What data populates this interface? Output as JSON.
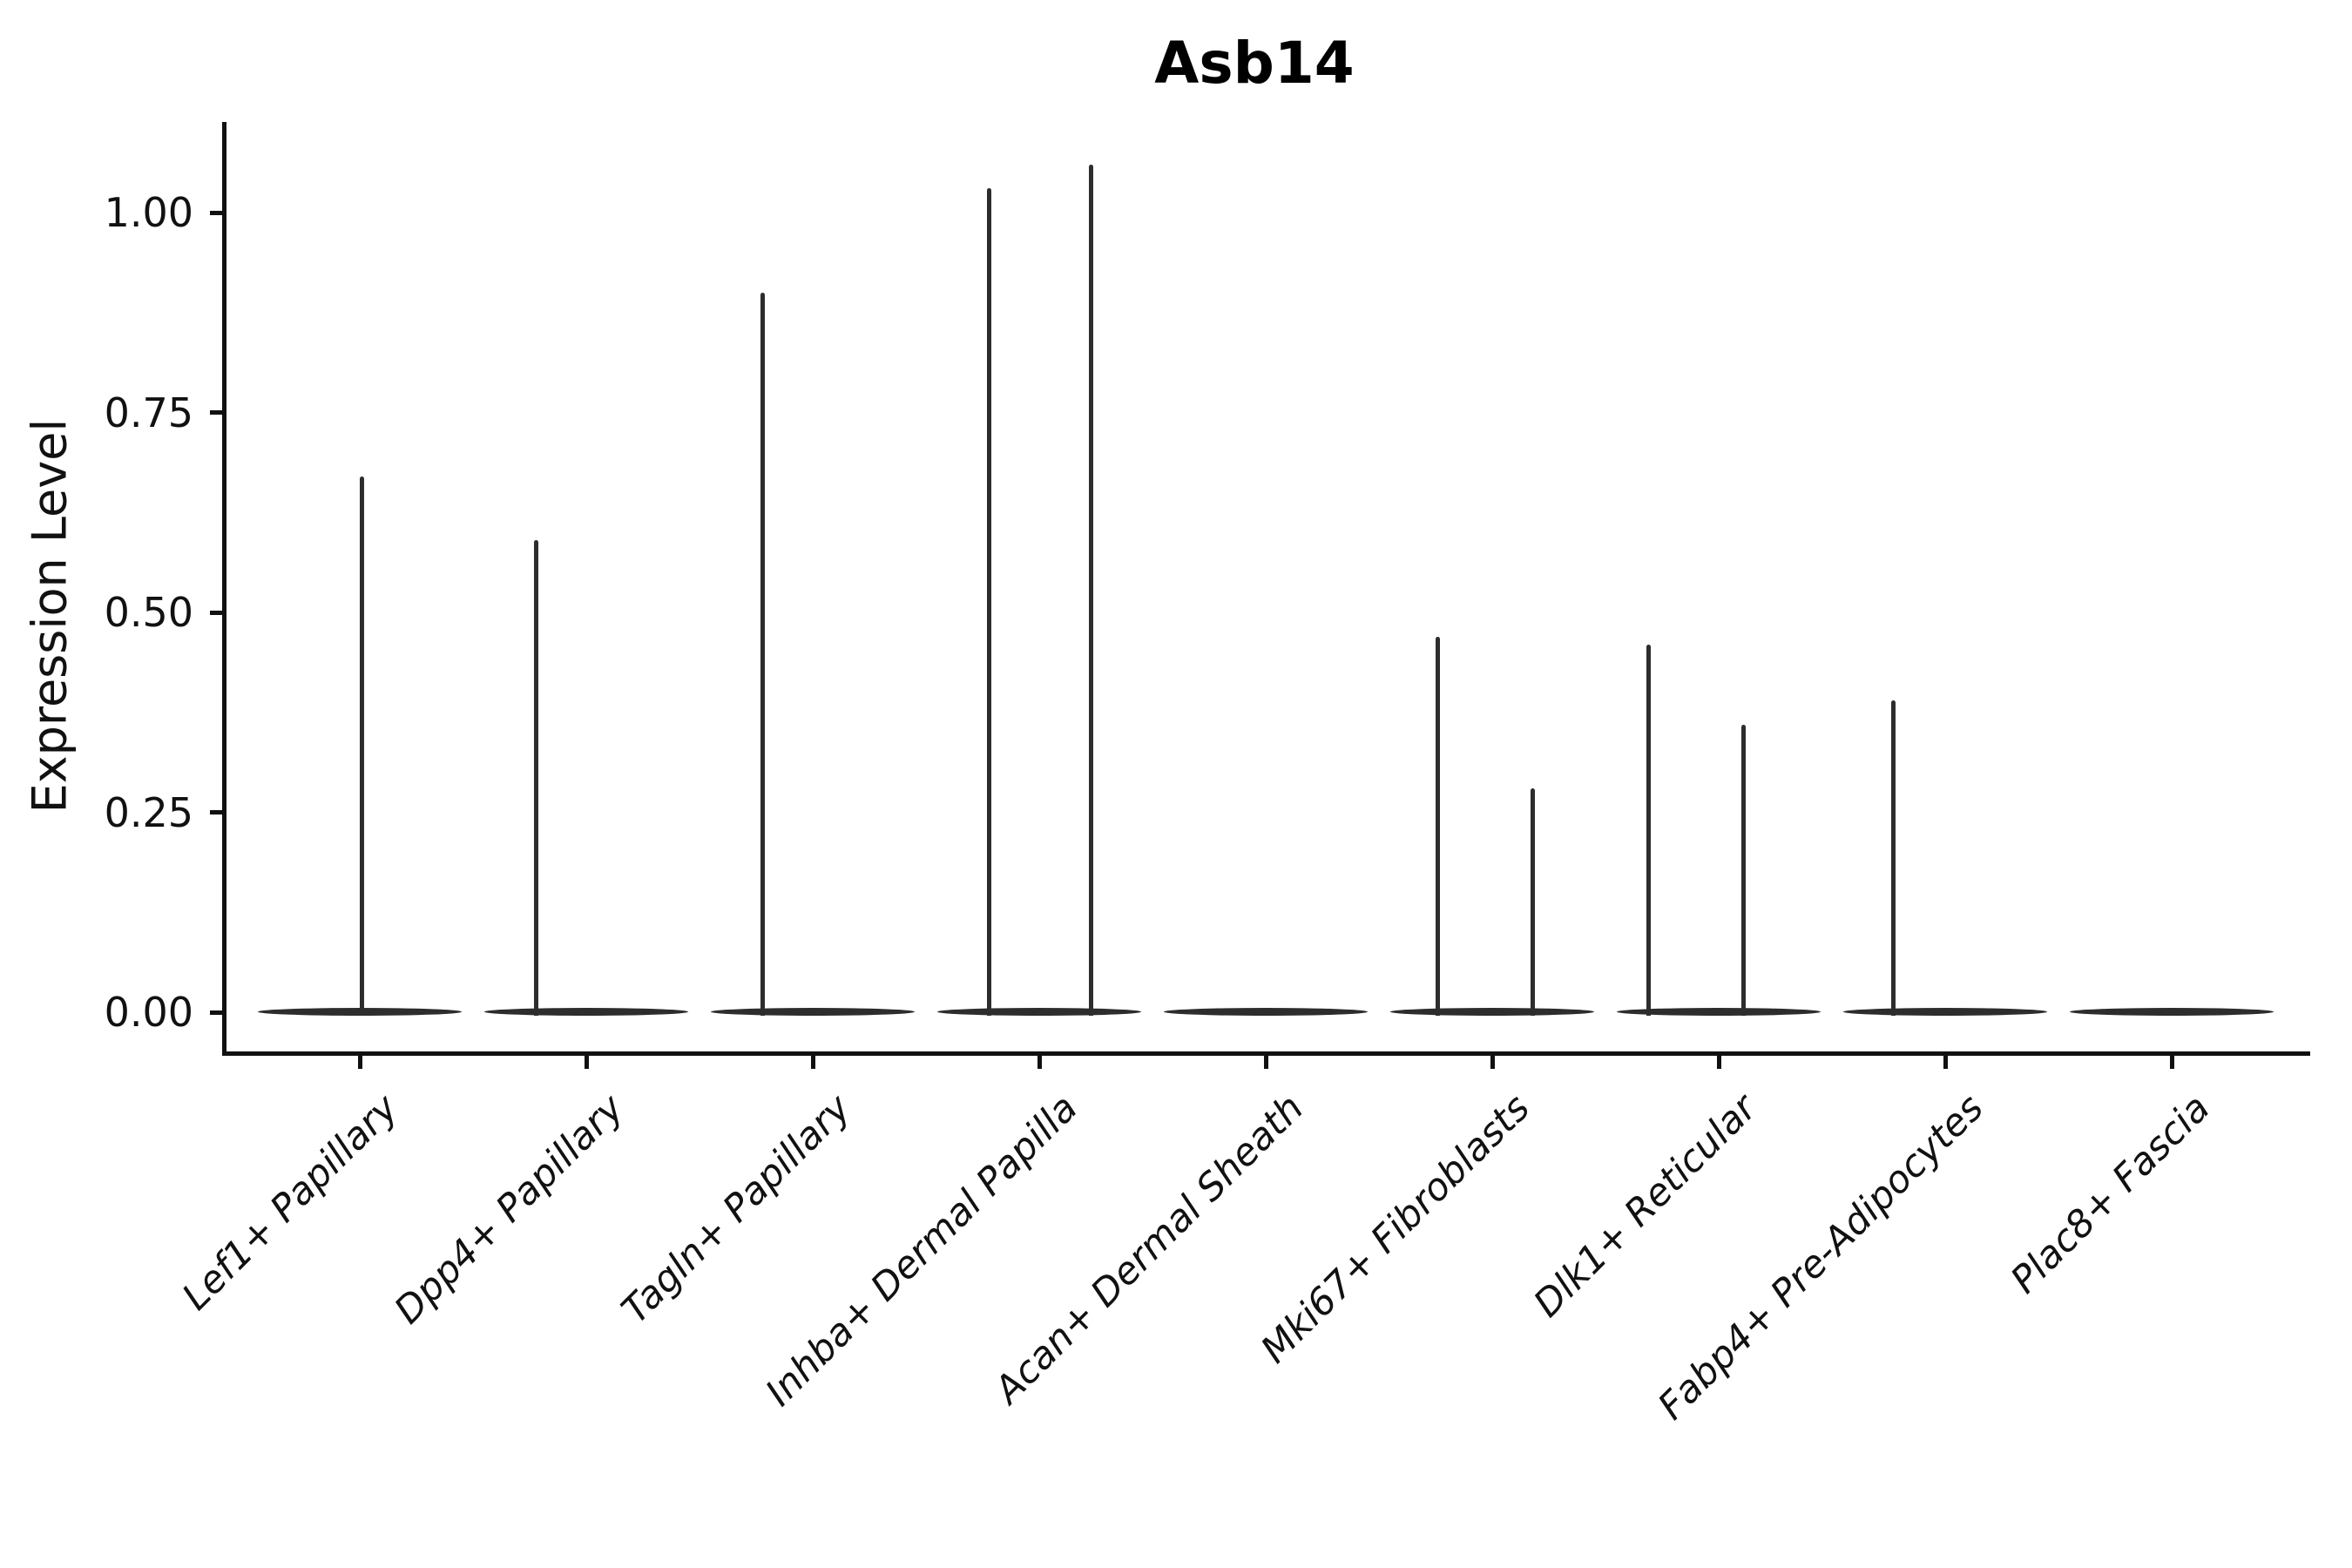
{
  "chart_data": {
    "type": "violin",
    "title": "Asb14",
    "xlabel": "",
    "ylabel": "Expression Level",
    "ylim": [
      -0.05,
      1.11
    ],
    "yticks": [
      0.0,
      0.25,
      0.5,
      0.75,
      1.0
    ],
    "ytick_labels": [
      "0.00",
      "0.25",
      "0.50",
      "0.75",
      "1.00"
    ],
    "grid": false,
    "legend": "none",
    "categories": [
      "Lef1+ Papillary",
      "Dpp4+ Papillary",
      "Tagln+ Papillary",
      "Inhba+ Dermal Papilla",
      "Acan+ Dermal Sheath",
      "Mki67+ Fibroblasts",
      "Dlk1+ Reticular",
      "Fabp4+ Pre-Adipocytes",
      "Plac8+ Fascia"
    ],
    "violins": [
      {
        "category": "Lef1+ Papillary",
        "body_value": 0,
        "spikes": [
          {
            "value": 0.67,
            "offset": 0.01
          }
        ]
      },
      {
        "category": "Dpp4+ Papillary",
        "body_value": 0,
        "spikes": [
          {
            "value": 0.59,
            "offset": -0.22
          }
        ]
      },
      {
        "category": "Tagln+ Papillary",
        "body_value": 0,
        "spikes": [
          {
            "value": 0.9,
            "offset": -0.22
          }
        ]
      },
      {
        "category": "Inhba+ Dermal Papilla",
        "body_value": 0,
        "spikes": [
          {
            "value": 1.03,
            "offset": -0.22
          },
          {
            "value": 1.06,
            "offset": 0.23
          }
        ]
      },
      {
        "category": "Acan+ Dermal Sheath",
        "body_value": 0,
        "spikes": []
      },
      {
        "category": "Mki67+ Fibroblasts",
        "body_value": 0,
        "spikes": [
          {
            "value": 0.47,
            "offset": -0.24
          },
          {
            "value": 0.28,
            "offset": 0.18
          }
        ]
      },
      {
        "category": "Dlk1+ Reticular",
        "body_value": 0,
        "spikes": [
          {
            "value": 0.46,
            "offset": -0.31
          },
          {
            "value": 0.36,
            "offset": 0.11
          }
        ]
      },
      {
        "category": "Fabp4+ Pre-Adipocytes",
        "body_value": 0,
        "spikes": [
          {
            "value": 0.39,
            "offset": -0.23
          }
        ]
      },
      {
        "category": "Plac8+ Fascia",
        "body_value": 0,
        "spikes": []
      }
    ],
    "colors": {
      "axis": "#111111",
      "violin": "#2d2d2d",
      "title": "#000000",
      "background": "#ffffff"
    }
  }
}
